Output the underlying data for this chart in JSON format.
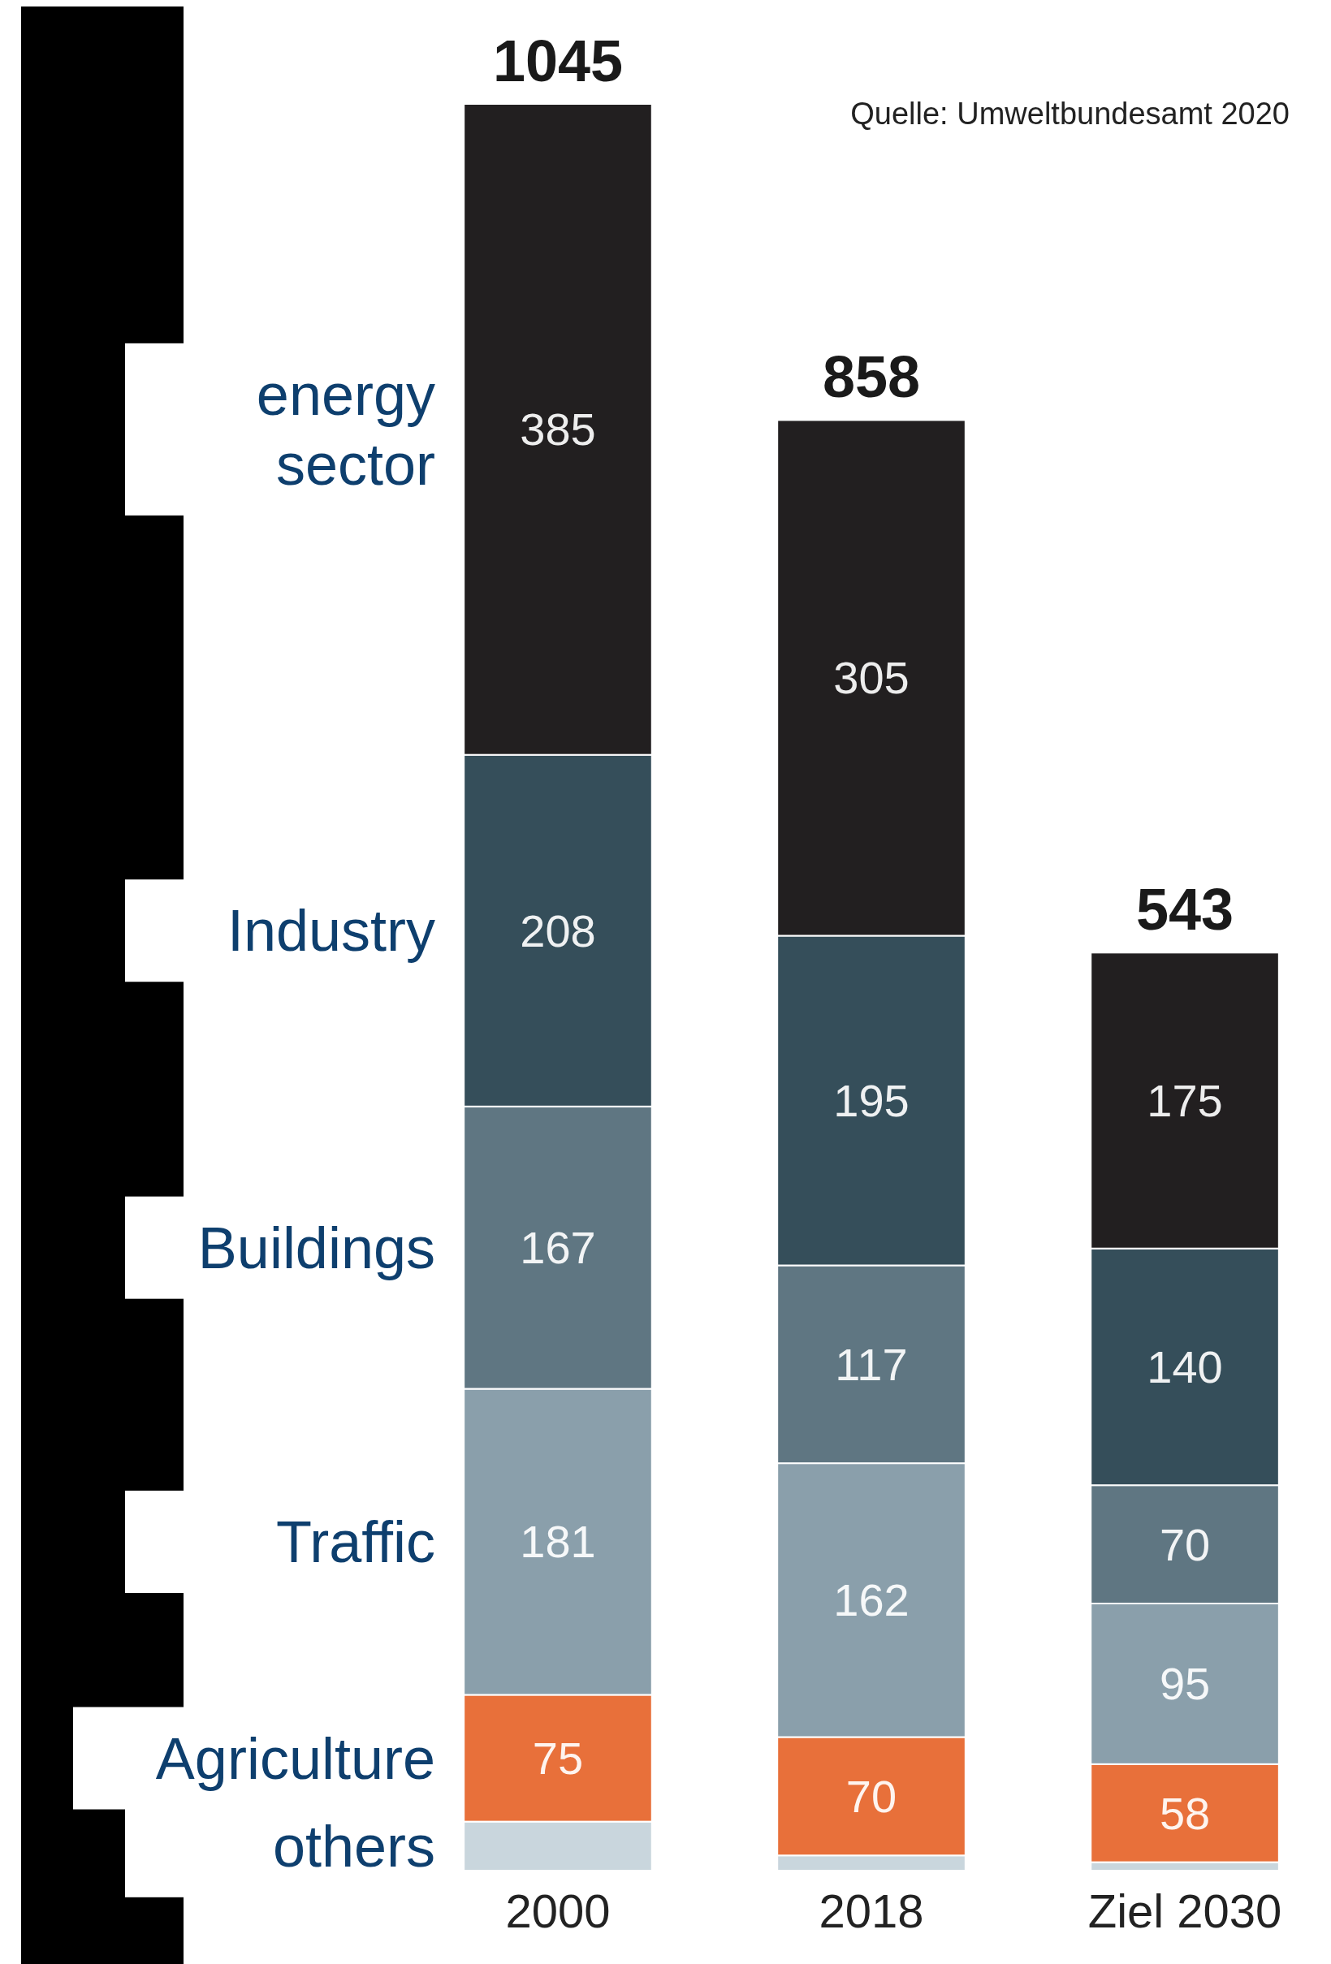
{
  "chart_data": {
    "type": "bar",
    "stacked": true,
    "categories": [
      "2000",
      "2018",
      "Ziel 2030"
    ],
    "series": [
      {
        "name": "others",
        "color": "#c9d6dd",
        "values": [
          29,
          9,
          5
        ],
        "value_labels": [
          null,
          null,
          null
        ]
      },
      {
        "name": "Agriculture",
        "color": "#e8703a",
        "values": [
          75,
          70,
          58
        ],
        "value_labels": [
          "75",
          "70",
          "58"
        ]
      },
      {
        "name": "Traffic",
        "color": "#8a9fab",
        "values": [
          181,
          162,
          95
        ],
        "value_labels": [
          "181",
          "162",
          "95"
        ]
      },
      {
        "name": "Buildings",
        "color": "#5f7682",
        "values": [
          167,
          117,
          70
        ],
        "value_labels": [
          "167",
          "117",
          "70"
        ]
      },
      {
        "name": "Industry",
        "color": "#354e5a",
        "values": [
          208,
          195,
          140
        ],
        "value_labels": [
          "208",
          "195",
          "140"
        ]
      },
      {
        "name": "energy sector",
        "color": "#221f20",
        "values": [
          385,
          305,
          175
        ],
        "value_labels": [
          "385",
          "305",
          "175"
        ]
      }
    ],
    "totals": [
      "1045",
      "858",
      "543"
    ],
    "annotations": [
      "Quelle: Umweltbundesamt 2020"
    ]
  }
}
